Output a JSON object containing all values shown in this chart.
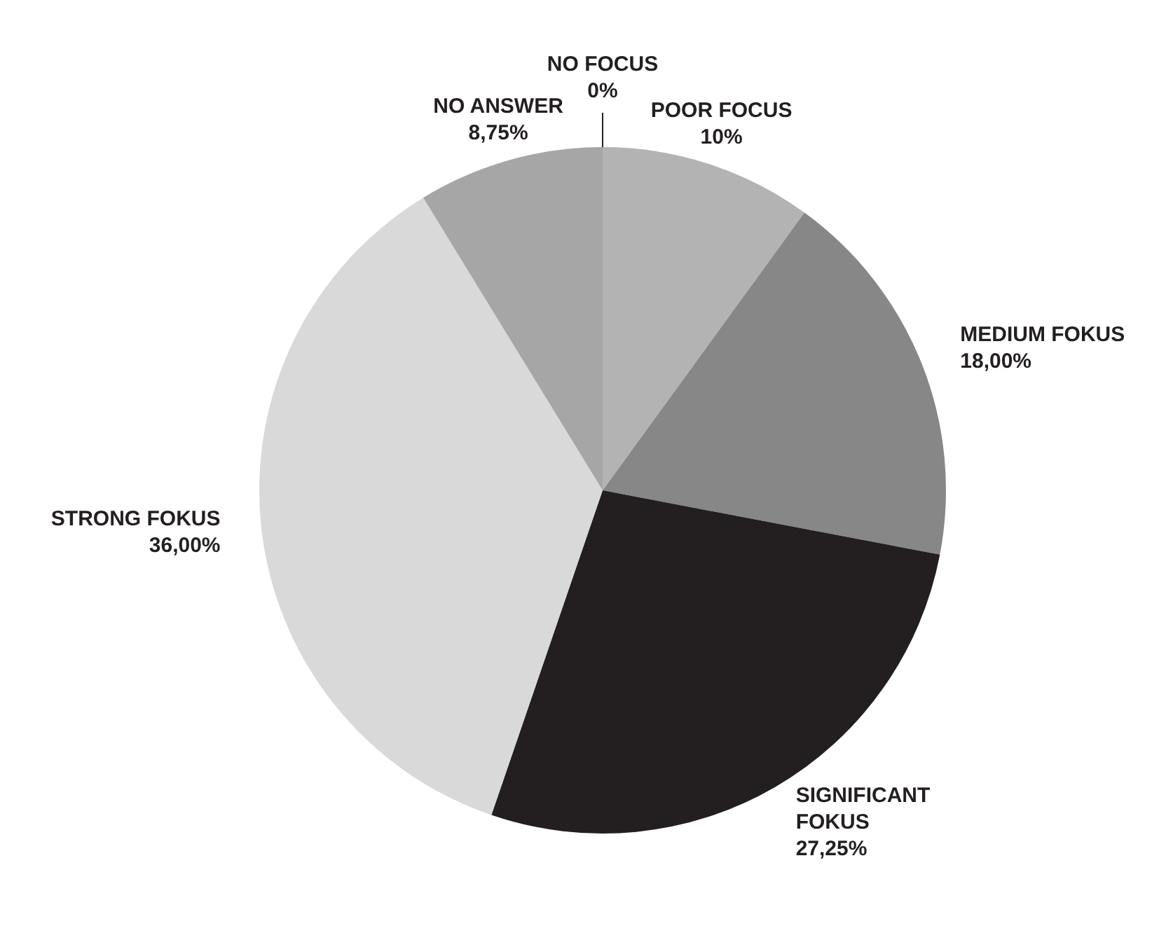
{
  "chart_data": {
    "type": "pie",
    "categories": [
      "NO FOCUS",
      "POOR FOCUS",
      "MEDIUM FOKUS",
      "SIGNIFICANT FOKUS",
      "STRONG FOKUS",
      "NO ANSWER"
    ],
    "values": [
      0,
      10,
      18,
      27.25,
      36,
      8.75
    ],
    "value_labels": [
      "0%",
      "10%",
      "18,00%",
      "27,25%",
      "36,00%",
      "8,75%"
    ],
    "colors": [
      "#c8c8c8",
      "#b3b3b3",
      "#878787",
      "#231f20",
      "#d9d9d9",
      "#a6a6a6"
    ],
    "legend": false
  }
}
